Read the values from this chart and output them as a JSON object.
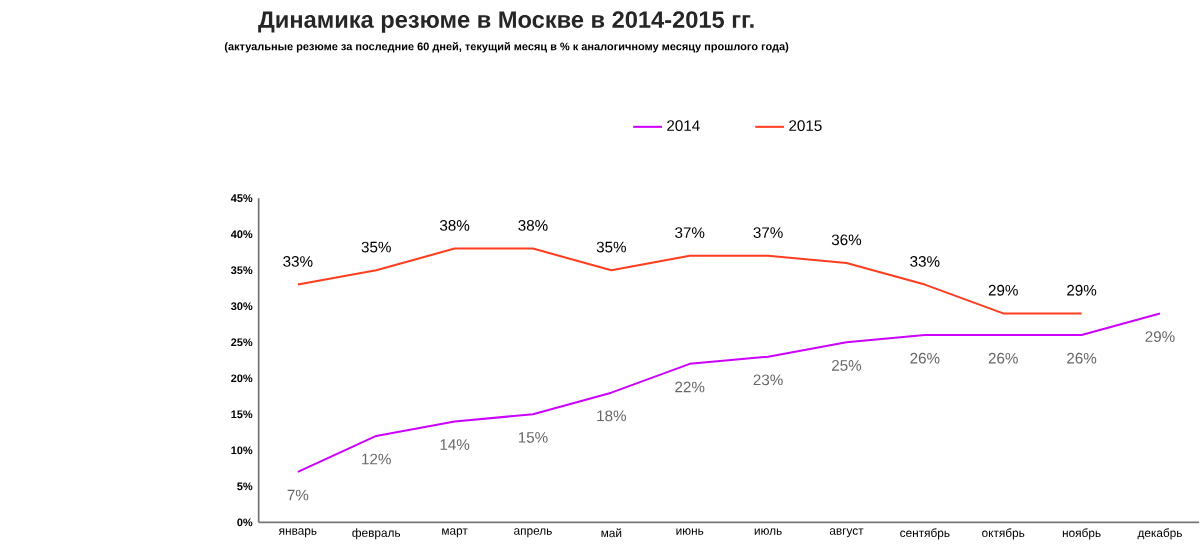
{
  "chart_data": {
    "type": "line",
    "title": "Динамика резюме в Москве в 2014-2015 гг.",
    "subtitle": "(актуальные резюме за последние 60 дней, текущий месяц в % к аналогичному месяцу прошлого года)",
    "categories": [
      "январь",
      "февраль",
      "март",
      "апрель",
      "май",
      "июнь",
      "июль",
      "август",
      "сентябрь",
      "октябрь",
      "ноябрь",
      "декабрь"
    ],
    "series": [
      {
        "name": "2014",
        "color": "#cc00ff",
        "values": [
          7,
          12,
          14,
          15,
          18,
          22,
          23,
          25,
          26,
          26,
          26,
          29
        ],
        "value_labels": [
          "7%",
          "12%",
          "14%",
          "15%",
          "18%",
          "22%",
          "23%",
          "25%",
          "26%",
          "26%",
          "26%",
          "29%"
        ]
      },
      {
        "name": "2015",
        "color": "#ff3d1f",
        "values": [
          33,
          35,
          38,
          38,
          35,
          37,
          37,
          36,
          33,
          29,
          29,
          null
        ],
        "value_labels": [
          "33%",
          "35%",
          "38%",
          "38%",
          "35%",
          "37%",
          "37%",
          "36%",
          "33%",
          "29%",
          "29%",
          null
        ]
      }
    ],
    "ylim": [
      0,
      45
    ],
    "yticks": [
      {
        "value": 0,
        "label": "0%"
      },
      {
        "value": 5,
        "label": "5%"
      },
      {
        "value": 10,
        "label": "10%"
      },
      {
        "value": 15,
        "label": "15%"
      },
      {
        "value": 20,
        "label": "20%"
      },
      {
        "value": 25,
        "label": "25%"
      },
      {
        "value": 30,
        "label": "30%"
      },
      {
        "value": 35,
        "label": "35%"
      },
      {
        "value": 40,
        "label": "40%"
      },
      {
        "value": 45,
        "label": "45%"
      }
    ],
    "grid": false,
    "legend": "top",
    "marker": "none",
    "line_style": "solid"
  }
}
